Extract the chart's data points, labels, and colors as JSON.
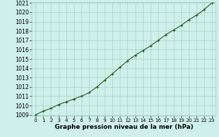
{
  "x": [
    0,
    1,
    2,
    3,
    4,
    5,
    6,
    7,
    8,
    9,
    10,
    11,
    12,
    13,
    14,
    15,
    16,
    17,
    18,
    19,
    20,
    21,
    22,
    23
  ],
  "y": [
    1009.0,
    1009.4,
    1009.7,
    1010.1,
    1010.4,
    1010.7,
    1011.0,
    1011.4,
    1012.0,
    1012.7,
    1013.4,
    1014.1,
    1014.8,
    1015.4,
    1015.9,
    1016.4,
    1017.0,
    1017.6,
    1018.1,
    1018.6,
    1019.2,
    1019.7,
    1020.3,
    1021.0
  ],
  "ylim": [
    1009,
    1021
  ],
  "xlim": [
    -0.5,
    23.5
  ],
  "yticks": [
    1009,
    1010,
    1011,
    1012,
    1013,
    1014,
    1015,
    1016,
    1017,
    1018,
    1019,
    1020,
    1021
  ],
  "xticks": [
    0,
    1,
    2,
    3,
    4,
    5,
    6,
    7,
    8,
    9,
    10,
    11,
    12,
    13,
    14,
    15,
    16,
    17,
    18,
    19,
    20,
    21,
    22,
    23
  ],
  "line_color": "#1a5c1a",
  "marker_color": "#1a5c1a",
  "bg_color": "#cff0ea",
  "grid_color": "#9ec8c0",
  "xlabel": "Graphe pression niveau de la mer (hPa)",
  "xlabel_fontsize": 6.5,
  "ytick_fontsize": 5.8,
  "xtick_fontsize": 5.2,
  "line_width": 0.8,
  "marker_size": 2.8
}
